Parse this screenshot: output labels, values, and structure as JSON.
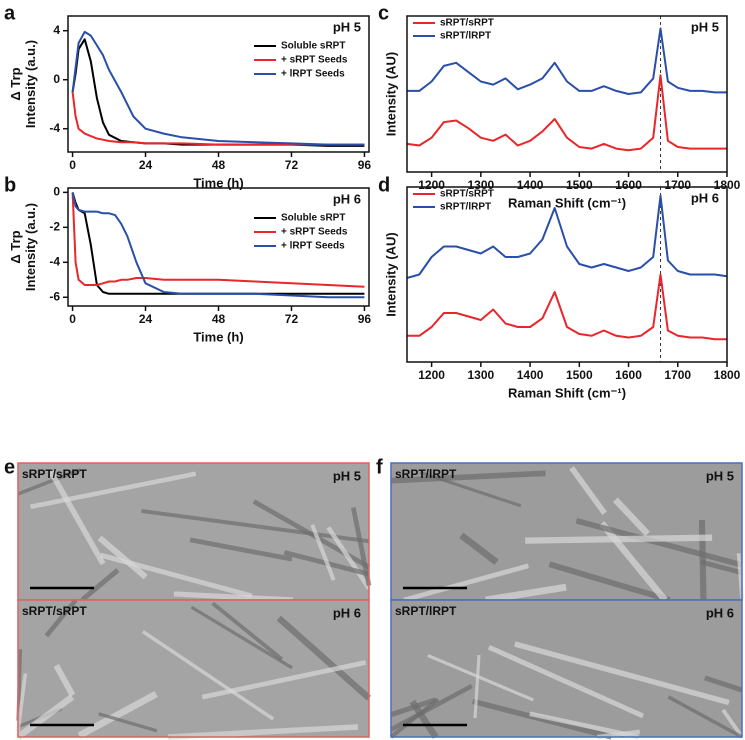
{
  "chart_data": [
    {
      "type": "line",
      "panel": "a",
      "annotation": "pH 5",
      "y_label": [
        "Δ Trp",
        "Intensity (a.u.)"
      ],
      "x_label": "Time (h)",
      "x": [
        0,
        1,
        2,
        4,
        6,
        8,
        10,
        12,
        16,
        20,
        24,
        30,
        36,
        48,
        60,
        72,
        84,
        96
      ],
      "xlim": [
        -1.5,
        97.5
      ],
      "xticks": [
        0,
        24,
        48,
        72,
        96
      ],
      "ylim": [
        -5.9,
        5.2
      ],
      "yticks": [
        4,
        0,
        -4
      ],
      "legend": "upper right",
      "series": [
        {
          "name": "Soluble sRPT",
          "color": "#000000",
          "values": [
            -1,
            0.5,
            2.5,
            3.3,
            1.5,
            -1.5,
            -3.5,
            -4.5,
            -5,
            -5.1,
            -5.2,
            -5.2,
            -5.3,
            -5.3,
            -5.3,
            -5.3,
            -5.4,
            -5.4
          ]
        },
        {
          "name": "+ sRPT Seeds",
          "color": "#e8262b",
          "values": [
            -1,
            -3,
            -4,
            -4.4,
            -4.6,
            -4.8,
            -4.9,
            -5,
            -5.1,
            -5.1,
            -5.2,
            -5.2,
            -5.2,
            -5.3,
            -5.3,
            -5.3,
            -5.3,
            -5.3
          ]
        },
        {
          "name": "+ lRPT Seeds",
          "color": "#2a4fa8",
          "values": [
            -1,
            1,
            3,
            3.9,
            3.6,
            2.8,
            2,
            0.8,
            -1,
            -3,
            -4,
            -4.4,
            -4.7,
            -5,
            -5.1,
            -5.2,
            -5.3,
            -5.3
          ]
        }
      ]
    },
    {
      "type": "line",
      "panel": "b",
      "annotation": "pH 6",
      "y_label": [
        "Δ Trp",
        "Intensity (a.u.)"
      ],
      "x_label": "Time (h)",
      "x": [
        0,
        1,
        2,
        4,
        6,
        8,
        10,
        12,
        14,
        16,
        18,
        21,
        24,
        30,
        36,
        48,
        60,
        72,
        84,
        96
      ],
      "xlim": [
        -1.5,
        97.5
      ],
      "xticks": [
        0,
        24,
        48,
        72,
        96
      ],
      "ylim": [
        -6.5,
        0.25
      ],
      "yticks": [
        0,
        -2,
        -4,
        -6
      ],
      "legend": "upper right",
      "series": [
        {
          "name": "Soluble sRPT",
          "color": "#000000",
          "values": [
            0,
            -0.6,
            -1,
            -1.2,
            -3,
            -5.3,
            -5.7,
            -5.8,
            -5.8,
            -5.8,
            -5.8,
            -5.8,
            -5.8,
            -5.8,
            -5.8,
            -5.8,
            -5.8,
            -5.8,
            -5.8,
            -5.8
          ]
        },
        {
          "name": "+ sRPT Seeds",
          "color": "#e8262b",
          "values": [
            0,
            -4,
            -5,
            -5.3,
            -5.3,
            -5.3,
            -5.2,
            -5.1,
            -5.1,
            -5,
            -5,
            -4.9,
            -4.9,
            -5,
            -5,
            -5,
            -5.1,
            -5.2,
            -5.3,
            -5.4
          ]
        },
        {
          "name": "+ lRPT Seeds",
          "color": "#2a4fa8",
          "values": [
            0,
            -0.8,
            -1,
            -1.1,
            -1.1,
            -1.1,
            -1.2,
            -1.2,
            -1.3,
            -1.8,
            -2.5,
            -4,
            -5.2,
            -5.7,
            -5.8,
            -5.8,
            -5.8,
            -5.9,
            -6,
            -6
          ]
        }
      ]
    },
    {
      "type": "line",
      "panel": "c",
      "annotation": "pH 5",
      "y_label": [
        "Intensity (AU)"
      ],
      "x_label": "Raman Shift (cm⁻¹)",
      "x": [
        1150,
        1175,
        1200,
        1225,
        1250,
        1275,
        1300,
        1325,
        1350,
        1375,
        1400,
        1425,
        1450,
        1475,
        1500,
        1525,
        1550,
        1575,
        1600,
        1625,
        1650,
        1665,
        1680,
        1700,
        1725,
        1750,
        1775,
        1800
      ],
      "xlim": [
        1150,
        1800
      ],
      "xticks": [
        1200,
        1300,
        1400,
        1500,
        1600,
        1700,
        1800
      ],
      "ylim": [
        0,
        1
      ],
      "ref_line": 1665,
      "legend": "upper left",
      "series": [
        {
          "name": "sRPT/sRPT",
          "color": "#e8262b",
          "values": [
            0.18,
            0.17,
            0.22,
            0.32,
            0.33,
            0.28,
            0.22,
            0.2,
            0.24,
            0.17,
            0.2,
            0.26,
            0.34,
            0.22,
            0.16,
            0.15,
            0.18,
            0.15,
            0.14,
            0.15,
            0.22,
            0.62,
            0.2,
            0.16,
            0.15,
            0.15,
            0.15,
            0.15
          ]
        },
        {
          "name": "sRPT/lRPT",
          "color": "#2a4fa8",
          "values": [
            0.52,
            0.52,
            0.58,
            0.68,
            0.7,
            0.64,
            0.58,
            0.56,
            0.6,
            0.53,
            0.56,
            0.6,
            0.7,
            0.58,
            0.52,
            0.52,
            0.55,
            0.52,
            0.5,
            0.51,
            0.6,
            0.92,
            0.58,
            0.54,
            0.52,
            0.52,
            0.51,
            0.51
          ]
        }
      ]
    },
    {
      "type": "line",
      "panel": "d",
      "annotation": "pH 6",
      "y_label": [
        "Intensity (AU)"
      ],
      "x_label": "Raman Shift (cm⁻¹)",
      "x": [
        1150,
        1175,
        1200,
        1225,
        1250,
        1275,
        1300,
        1325,
        1350,
        1375,
        1400,
        1425,
        1450,
        1475,
        1500,
        1525,
        1550,
        1575,
        1600,
        1625,
        1650,
        1665,
        1680,
        1700,
        1725,
        1750,
        1775,
        1800
      ],
      "xlim": [
        1150,
        1800
      ],
      "xticks": [
        1200,
        1300,
        1400,
        1500,
        1600,
        1700,
        1800
      ],
      "ylim": [
        0,
        1
      ],
      "ref_line": 1665,
      "legend": "upper left",
      "series": [
        {
          "name": "sRPT/sRPT",
          "color": "#e8262b",
          "values": [
            0.15,
            0.15,
            0.2,
            0.28,
            0.28,
            0.26,
            0.24,
            0.3,
            0.22,
            0.2,
            0.2,
            0.25,
            0.4,
            0.2,
            0.16,
            0.15,
            0.18,
            0.15,
            0.14,
            0.15,
            0.2,
            0.5,
            0.18,
            0.15,
            0.14,
            0.14,
            0.13,
            0.13
          ]
        },
        {
          "name": "sRPT/lRPT",
          "color": "#2a4fa8",
          "values": [
            0.48,
            0.5,
            0.6,
            0.66,
            0.66,
            0.64,
            0.62,
            0.66,
            0.6,
            0.6,
            0.62,
            0.7,
            0.88,
            0.66,
            0.56,
            0.54,
            0.56,
            0.54,
            0.52,
            0.54,
            0.6,
            0.95,
            0.58,
            0.52,
            0.5,
            0.5,
            0.5,
            0.49
          ]
        }
      ]
    }
  ],
  "micrographs": [
    {
      "panel": "e",
      "border_color": "#e06060",
      "tiles": [
        {
          "label": "sRPT/sRPT",
          "ph": "pH 5"
        },
        {
          "label": "sRPT/sRPT",
          "ph": "pH 6"
        }
      ]
    },
    {
      "panel": "f",
      "border_color": "#4a6fb8",
      "tiles": [
        {
          "label": "sRPT/lRPT",
          "ph": "pH 5"
        },
        {
          "label": "sRPT/lRPT",
          "ph": "pH 6"
        }
      ]
    }
  ]
}
